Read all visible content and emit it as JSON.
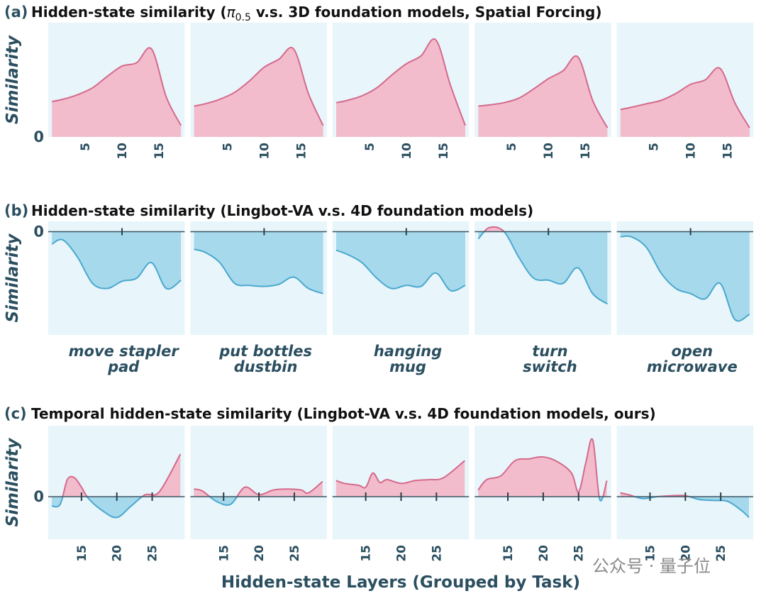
{
  "watermark": "公众号 · 量子位",
  "colors": {
    "positive": "#f2bccc",
    "positive_line": "#d46a8c",
    "negative": "#a6d9ec",
    "negative_line": "#4aa8cf",
    "panel_bg": "#e8f5fa",
    "text": "#2b4f60"
  },
  "xlabel": "Hidden-state Layers (Grouped by Task)",
  "tasks": [
    [
      "move stapler",
      "pad"
    ],
    [
      "put bottles",
      "dustbin"
    ],
    [
      "hanging",
      "mug"
    ],
    [
      "turn",
      "switch"
    ],
    [
      "open",
      "microwave"
    ]
  ],
  "chart_data": [
    {
      "type": "area",
      "label": "(a)",
      "title": "Hidden-state similarity (π0.5 v.s. 3D foundation models, Spatial Forcing)",
      "ylabel": "Similarity",
      "yticks": [
        0
      ],
      "ylim": [
        0,
        1.0
      ],
      "xlim": [
        0,
        18.5
      ],
      "xticks": [
        5,
        10,
        15
      ],
      "xtick_labels": [
        "5",
        "10",
        "15"
      ],
      "zero_line": false,
      "series": [
        {
          "x": [
            0.5,
            2,
            4,
            6,
            8,
            10,
            12,
            14,
            16,
            18
          ],
          "y": [
            0.31,
            0.33,
            0.37,
            0.43,
            0.53,
            0.62,
            0.65,
            0.77,
            0.35,
            0.1
          ]
        },
        {
          "x": [
            0.5,
            2,
            4,
            6,
            8,
            10,
            12,
            14,
            16,
            18
          ],
          "y": [
            0.27,
            0.29,
            0.33,
            0.39,
            0.49,
            0.61,
            0.68,
            0.77,
            0.38,
            0.1
          ]
        },
        {
          "x": [
            0.5,
            2,
            4,
            6,
            8,
            10,
            12,
            14,
            16,
            18
          ],
          "y": [
            0.3,
            0.32,
            0.36,
            0.43,
            0.54,
            0.64,
            0.71,
            0.85,
            0.45,
            0.1
          ]
        },
        {
          "x": [
            0.5,
            2,
            4,
            6,
            8,
            10,
            12,
            14,
            16,
            18
          ],
          "y": [
            0.27,
            0.28,
            0.3,
            0.34,
            0.42,
            0.51,
            0.58,
            0.7,
            0.32,
            0.08
          ]
        },
        {
          "x": [
            0.5,
            2,
            4,
            6,
            8,
            10,
            12,
            14,
            16,
            18
          ],
          "y": [
            0.24,
            0.26,
            0.29,
            0.32,
            0.38,
            0.46,
            0.5,
            0.6,
            0.3,
            0.08
          ]
        }
      ]
    },
    {
      "type": "area",
      "label": "(b)",
      "title": "Hidden-state similarity (Lingbot-VA v.s. 4D foundation models)",
      "ylabel": "Similarity",
      "yticks": [
        0
      ],
      "ylim": [
        -1.0,
        0.1
      ],
      "xlim": [
        0,
        18.5
      ],
      "xticks": [
        10
      ],
      "xtick_labels": [],
      "zero_line": true,
      "series": [
        {
          "x": [
            0.5,
            2,
            4,
            6,
            8,
            10,
            12,
            14,
            16,
            18
          ],
          "y": [
            -0.12,
            -0.08,
            -0.25,
            -0.5,
            -0.55,
            -0.48,
            -0.45,
            -0.3,
            -0.55,
            -0.47
          ]
        },
        {
          "x": [
            0.5,
            2,
            4,
            6,
            8,
            10,
            12,
            14,
            16,
            18
          ],
          "y": [
            -0.17,
            -0.2,
            -0.3,
            -0.5,
            -0.52,
            -0.53,
            -0.51,
            -0.44,
            -0.55,
            -0.6
          ]
        },
        {
          "x": [
            0.5,
            2,
            4,
            6,
            8,
            10,
            12,
            14,
            16,
            18
          ],
          "y": [
            -0.18,
            -0.22,
            -0.3,
            -0.45,
            -0.55,
            -0.52,
            -0.53,
            -0.4,
            -0.57,
            -0.52
          ]
        },
        {
          "x": [
            0.5,
            2,
            4,
            6,
            8,
            10,
            12,
            14,
            16,
            18
          ],
          "y": [
            -0.07,
            0.04,
            0.0,
            -0.25,
            -0.45,
            -0.47,
            -0.5,
            -0.35,
            -0.6,
            -0.7
          ]
        },
        {
          "x": [
            0.5,
            2,
            4,
            6,
            8,
            10,
            12,
            14,
            16,
            18
          ],
          "y": [
            -0.05,
            -0.05,
            -0.15,
            -0.4,
            -0.55,
            -0.6,
            -0.65,
            -0.5,
            -0.85,
            -0.8
          ]
        }
      ]
    },
    {
      "type": "area",
      "label": "(c)",
      "title": "Temporal hidden-state similarity (Lingbot-VA v.s. 4D foundation models, ours)",
      "ylabel": "Similarity",
      "yticks": [
        0
      ],
      "ylim": [
        -0.45,
        0.75
      ],
      "xlim": [
        10.3,
        29.6
      ],
      "xticks": [
        15,
        20,
        25
      ],
      "xtick_labels": [
        "15",
        "20",
        "25"
      ],
      "zero_line": true,
      "series": [
        {
          "x": [
            10.8,
            12,
            13,
            14,
            15,
            16,
            18,
            20,
            22,
            24,
            26,
            29
          ],
          "y": [
            -0.1,
            -0.08,
            0.18,
            0.2,
            0.1,
            -0.02,
            -0.15,
            -0.22,
            -0.1,
            0.02,
            0.05,
            0.45
          ]
        },
        {
          "x": [
            10.8,
            12,
            14,
            16,
            18,
            20,
            22,
            24,
            26,
            27,
            29
          ],
          "y": [
            0.08,
            0.06,
            -0.05,
            -0.08,
            0.1,
            0.02,
            0.07,
            0.08,
            0.07,
            0.04,
            0.16
          ]
        },
        {
          "x": [
            10.8,
            12,
            14,
            15,
            16,
            17,
            18,
            20,
            22,
            24,
            26,
            29
          ],
          "y": [
            0.17,
            0.14,
            0.12,
            0.1,
            0.25,
            0.15,
            0.18,
            0.14,
            0.17,
            0.18,
            0.2,
            0.38
          ]
        },
        {
          "x": [
            10.8,
            12,
            14,
            16,
            18,
            20,
            22,
            24,
            25,
            26,
            27,
            28,
            29
          ],
          "y": [
            0.07,
            0.18,
            0.22,
            0.38,
            0.4,
            0.42,
            0.37,
            0.25,
            0.05,
            0.35,
            0.6,
            -0.03,
            0.17
          ]
        },
        {
          "x": [
            10.8,
            12,
            14,
            16,
            18,
            20,
            22,
            24,
            26,
            28,
            29
          ],
          "y": [
            0.04,
            0.02,
            -0.02,
            0.0,
            0.01,
            0.01,
            -0.03,
            -0.04,
            -0.05,
            -0.15,
            -0.22
          ]
        }
      ]
    }
  ]
}
